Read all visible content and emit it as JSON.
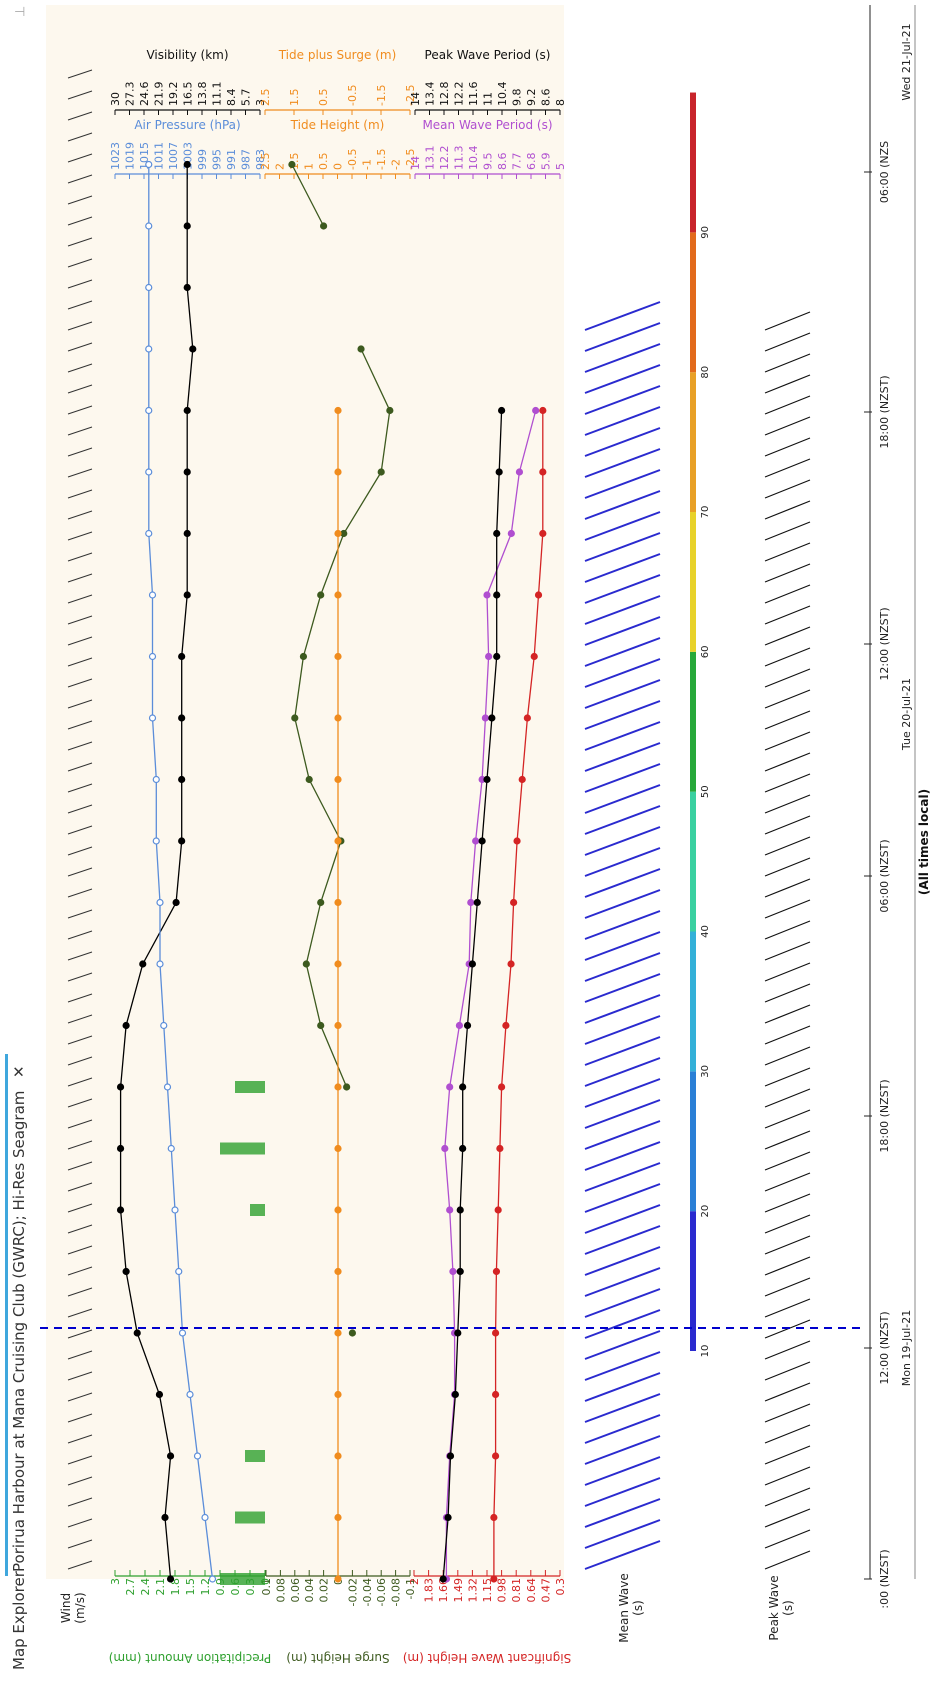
{
  "tabs": {
    "map_explorer": "Map Explorer",
    "active_tab": "Porirua Harbour at Mana Cruising Club (GWRC); Hi-Res Seagram",
    "close_glyph": "✕",
    "collapse_glyph": "⊣"
  },
  "axes": {
    "wind": [
      "Wind",
      "(m/s)"
    ],
    "precip_label": "Precipitation Amount (mm)",
    "precip_ticks": [
      "3",
      "2.7",
      "2.4",
      "2.1",
      "1.8",
      "1.5",
      "1.2",
      "0.9",
      "0.6",
      "0.3",
      "0"
    ],
    "surge_label": "Surge Height (m)",
    "surge_ticks": [
      "0.1",
      "0.08",
      "0.06",
      "0.04",
      "0.02",
      "0",
      "-0.02",
      "-0.04",
      "-0.06",
      "-0.08",
      "-0.1"
    ],
    "swh_label": "Significant Wave Height (m)",
    "swh_ticks": [
      "2",
      "1.83",
      "1.66",
      "1.49",
      "1.32",
      "1.15",
      "0.98",
      "0.81",
      "0.64",
      "0.47",
      "0.3"
    ],
    "mean_wave": [
      "Mean Wave",
      "(s)"
    ],
    "peak_wave": [
      "Peak Wave",
      "(s)"
    ],
    "air_label": "Air Pressure (hPa)",
    "air_ticks": [
      "1023",
      "1019",
      "1015",
      "1011",
      "1007",
      "1003",
      "999",
      "995",
      "991",
      "987",
      "983"
    ],
    "tide_label": "Tide Height (m)",
    "tide_ticks": [
      "2.5",
      "2",
      "1.5",
      "1",
      "0.5",
      "0",
      "-0.5",
      "-1",
      "-1.5",
      "-2",
      "-2.5"
    ],
    "mwp_label": "Mean Wave Period (s)",
    "mwp_ticks": [
      "14",
      "13.1",
      "12.2",
      "11.3",
      "10.4",
      "9.5",
      "8.6",
      "7.7",
      "6.8",
      "5.9",
      "5"
    ],
    "vis_label": "Visibility (km)",
    "vis_ticks": [
      "30",
      "27.3",
      "24.6",
      "21.9",
      "19.2",
      "16.5",
      "13.8",
      "11.1",
      "8.4",
      "5.7",
      "3"
    ],
    "tps_label": "Tide plus Surge (m)",
    "tps_ticks": [
      "2.5",
      "1.5",
      "0.5",
      "-0.5",
      "-1.5",
      "-2.5"
    ],
    "pwp_label": "Peak Wave Period (s)",
    "pwp_ticks": [
      "14",
      "13.4",
      "12.8",
      "12.2",
      "11.6",
      "11",
      "10.4",
      "9.8",
      "9.2",
      "8.6",
      "8"
    ]
  },
  "time_axis": {
    "ticks": [
      ":00 (NZST)",
      "12:00 (NZST)",
      "18:00 (NZST)",
      "06:00 (NZST)",
      "12:00 (NZST)",
      "18:00 (NZST)",
      "06:00 (NZS"
    ],
    "dates": [
      "Mon 19-Jul-21",
      "Tue 20-Jul-21",
      "Wed 21-Jul-21"
    ],
    "note": "(All times local)"
  },
  "colorbar": {
    "ticks": [
      "10",
      "20",
      "30",
      "40",
      "50",
      "60",
      "70",
      "80",
      "90"
    ]
  },
  "colors": {
    "black": "#000000",
    "air": "#5b8dd9",
    "tide": "#f08c1e",
    "surge": "#3d5a1f",
    "precip": "#2ea02e",
    "swh": "#d42424",
    "mwp": "#b04fd0",
    "mean_wave": "#2a2acf",
    "panel_bg": "#fdf8ee",
    "cursor": "#0000cc"
  },
  "chart_data": {
    "type": "line",
    "x_time_hours_from_start": [
      0,
      3,
      6,
      9,
      12,
      15,
      18,
      21,
      24,
      27,
      30,
      33,
      36,
      39,
      42,
      45,
      48,
      51,
      54,
      57,
      60,
      63,
      66,
      69
    ],
    "time_range": [
      "Mon 19-Jul-21 06:00",
      "Wed 21-Jul-21 07:00"
    ],
    "series": [
      {
        "name": "Visibility (km)",
        "values": [
          20,
          21,
          20,
          22,
          26,
          28,
          29,
          29,
          29,
          28,
          25,
          19,
          18,
          18,
          18,
          18,
          17,
          17,
          17,
          17,
          16,
          17,
          17,
          17
        ]
      },
      {
        "name": "Air Pressure (hPa)",
        "values": [
          997,
          999,
          1001,
          1003,
          1005,
          1006,
          1007,
          1008,
          1009,
          1010,
          1011,
          1011,
          1012,
          1012,
          1013,
          1013,
          1013,
          1014,
          1014,
          1014,
          1014,
          1014,
          1014,
          1014
        ]
      },
      {
        "name": "Tide plus Surge (m)",
        "values": [
          null,
          null,
          null,
          null,
          -0.5,
          null,
          null,
          null,
          -0.3,
          0.6,
          1.1,
          0.6,
          -0.1,
          1.0,
          1.5,
          1.2,
          0.6,
          -0.2,
          -1.5,
          -1.8,
          -0.8,
          null,
          0.5,
          1.6
        ]
      },
      {
        "name": "Significant Wave Height (m)",
        "values": [
          1.07,
          1.07,
          1.05,
          1.05,
          1.05,
          1.04,
          1.02,
          1.0,
          0.98,
          0.93,
          0.87,
          0.84,
          0.8,
          0.74,
          0.68,
          0.6,
          0.55,
          0.5,
          0.5,
          0.5,
          null,
          null,
          null,
          null
        ]
      },
      {
        "name": "Mean Wave Period (s)",
        "values": [
          12.0,
          12.0,
          11.8,
          11.5,
          11.5,
          11.6,
          11.8,
          12.1,
          11.8,
          11.2,
          10.6,
          10.5,
          10.2,
          9.8,
          9.6,
          9.4,
          9.5,
          8.0,
          7.5,
          6.5,
          null,
          null,
          null,
          null
        ]
      },
      {
        "name": "Peak Wave Period (s)",
        "values": [
          12.8,
          12.6,
          12.5,
          12.3,
          12.2,
          12.1,
          12.1,
          12.0,
          12.0,
          11.8,
          11.6,
          11.4,
          11.2,
          11.0,
          10.8,
          10.6,
          10.6,
          10.6,
          10.5,
          10.4,
          null,
          null,
          null,
          null
        ]
      },
      {
        "name": "Precipitation Amount (mm)",
        "values": [
          0.9,
          0.6,
          0.4,
          0,
          0,
          0,
          0.3,
          0.9,
          0.6,
          0,
          0,
          0,
          0,
          0,
          0,
          0,
          0,
          0,
          0,
          0,
          0,
          0,
          0,
          0
        ]
      }
    ]
  }
}
